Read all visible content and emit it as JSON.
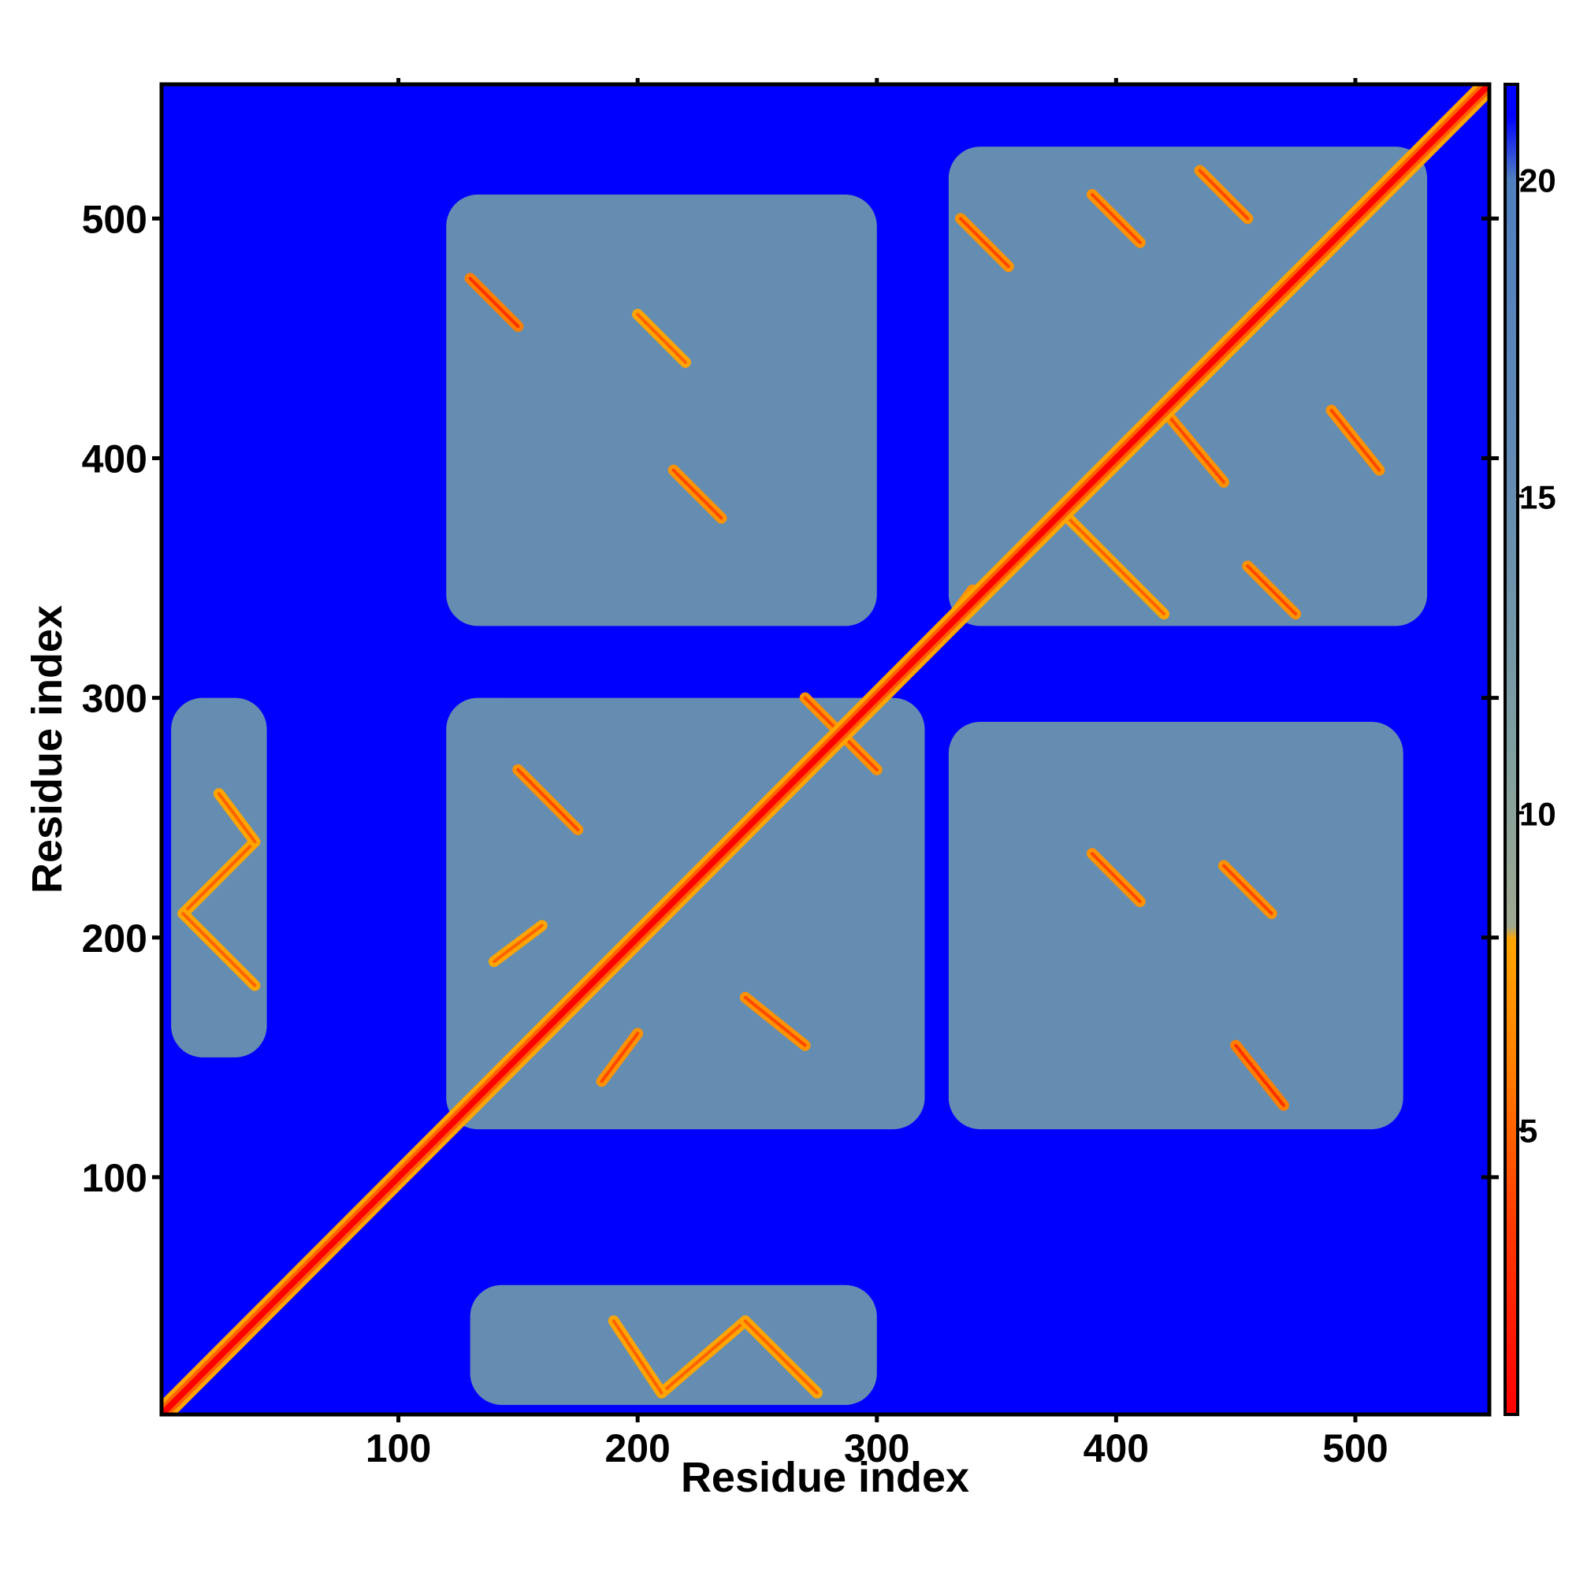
{
  "chart_data": {
    "type": "heatmap",
    "title": "",
    "xlabel": "Residue index",
    "ylabel": "Residue index",
    "xlim": [
      1,
      556
    ],
    "ylim": [
      1,
      556
    ],
    "x_ticks": [
      100,
      200,
      300,
      400,
      500
    ],
    "y_ticks": [
      100,
      200,
      300,
      400,
      500
    ],
    "x_tick_labels": [
      "100",
      "200",
      "300",
      "400",
      "500"
    ],
    "y_tick_labels": [
      "100",
      "200",
      "300",
      "400",
      "500"
    ],
    "colorbar": {
      "range": [
        0.5,
        21.5
      ],
      "ticks": [
        5,
        10,
        15,
        20
      ],
      "tick_labels": [
        "5",
        "10",
        "15",
        "20"
      ],
      "stops": [
        {
          "value": 0.5,
          "color": "#ff0000"
        },
        {
          "value": 3.5,
          "color": "#ff3a00"
        },
        {
          "value": 6.0,
          "color": "#ff7f00"
        },
        {
          "value": 8.0,
          "color": "#ffa500"
        },
        {
          "value": 8.2,
          "color": "#a0a890"
        },
        {
          "value": 11.0,
          "color": "#7f9f9f"
        },
        {
          "value": 16.0,
          "color": "#5f88b5"
        },
        {
          "value": 20.0,
          "color": "#4f7fbf"
        },
        {
          "value": 21.0,
          "color": "#0000ff"
        },
        {
          "value": 21.5,
          "color": "#0000ff"
        }
      ]
    },
    "background_color": "#0000ff",
    "diagonal_color": "#ff0000",
    "grid": false,
    "contact_regions": [
      {
        "x": [
          5,
          45
        ],
        "y": [
          150,
          300
        ],
        "level": 15
      },
      {
        "x": [
          130,
          300
        ],
        "y": [
          5,
          55
        ],
        "level": 15
      },
      {
        "x": [
          120,
          320
        ],
        "y": [
          120,
          300
        ],
        "level": 15
      },
      {
        "x": [
          120,
          300
        ],
        "y": [
          330,
          510
        ],
        "level": 15
      },
      {
        "x": [
          330,
          520
        ],
        "y": [
          120,
          290
        ],
        "level": 15
      },
      {
        "x": [
          330,
          530
        ],
        "y": [
          330,
          530
        ],
        "level": 15
      }
    ],
    "contact_streaks": [
      {
        "from": [
          10,
          210
        ],
        "to": [
          40,
          240
        ],
        "level": 8
      },
      {
        "from": [
          10,
          210
        ],
        "to": [
          40,
          180
        ],
        "level": 8
      },
      {
        "from": [
          25,
          260
        ],
        "to": [
          40,
          240
        ],
        "level": 8
      },
      {
        "from": [
          210,
          10
        ],
        "to": [
          245,
          40
        ],
        "level": 8
      },
      {
        "from": [
          245,
          40
        ],
        "to": [
          275,
          10
        ],
        "level": 8
      },
      {
        "from": [
          190,
          40
        ],
        "to": [
          210,
          10
        ],
        "level": 8
      },
      {
        "from": [
          130,
          475
        ],
        "to": [
          150,
          455
        ],
        "level": 6
      },
      {
        "from": [
          200,
          460
        ],
        "to": [
          220,
          440
        ],
        "level": 8
      },
      {
        "from": [
          215,
          395
        ],
        "to": [
          235,
          375
        ],
        "level": 7
      },
      {
        "from": [
          150,
          270
        ],
        "to": [
          175,
          245
        ],
        "level": 7
      },
      {
        "from": [
          140,
          190
        ],
        "to": [
          160,
          205
        ],
        "level": 8
      },
      {
        "from": [
          185,
          140
        ],
        "to": [
          200,
          160
        ],
        "level": 7
      },
      {
        "from": [
          245,
          175
        ],
        "to": [
          270,
          155
        ],
        "level": 7
      },
      {
        "from": [
          335,
          500
        ],
        "to": [
          355,
          480
        ],
        "level": 7
      },
      {
        "from": [
          390,
          510
        ],
        "to": [
          410,
          490
        ],
        "level": 7
      },
      {
        "from": [
          435,
          520
        ],
        "to": [
          455,
          500
        ],
        "level": 7
      },
      {
        "from": [
          380,
          375
        ],
        "to": [
          420,
          335
        ],
        "level": 8
      },
      {
        "from": [
          420,
          420
        ],
        "to": [
          445,
          390
        ],
        "level": 7
      },
      {
        "from": [
          490,
          420
        ],
        "to": [
          510,
          395
        ],
        "level": 7
      },
      {
        "from": [
          455,
          355
        ],
        "to": [
          475,
          335
        ],
        "level": 7
      },
      {
        "from": [
          390,
          235
        ],
        "to": [
          410,
          215
        ],
        "level": 7
      },
      {
        "from": [
          445,
          230
        ],
        "to": [
          465,
          210
        ],
        "level": 7
      },
      {
        "from": [
          450,
          155
        ],
        "to": [
          470,
          130
        ],
        "level": 6
      },
      {
        "from": [
          325,
          325
        ],
        "to": [
          340,
          345
        ],
        "level": 7
      },
      {
        "from": [
          270,
          300
        ],
        "to": [
          300,
          270
        ],
        "level": 7
      }
    ]
  }
}
